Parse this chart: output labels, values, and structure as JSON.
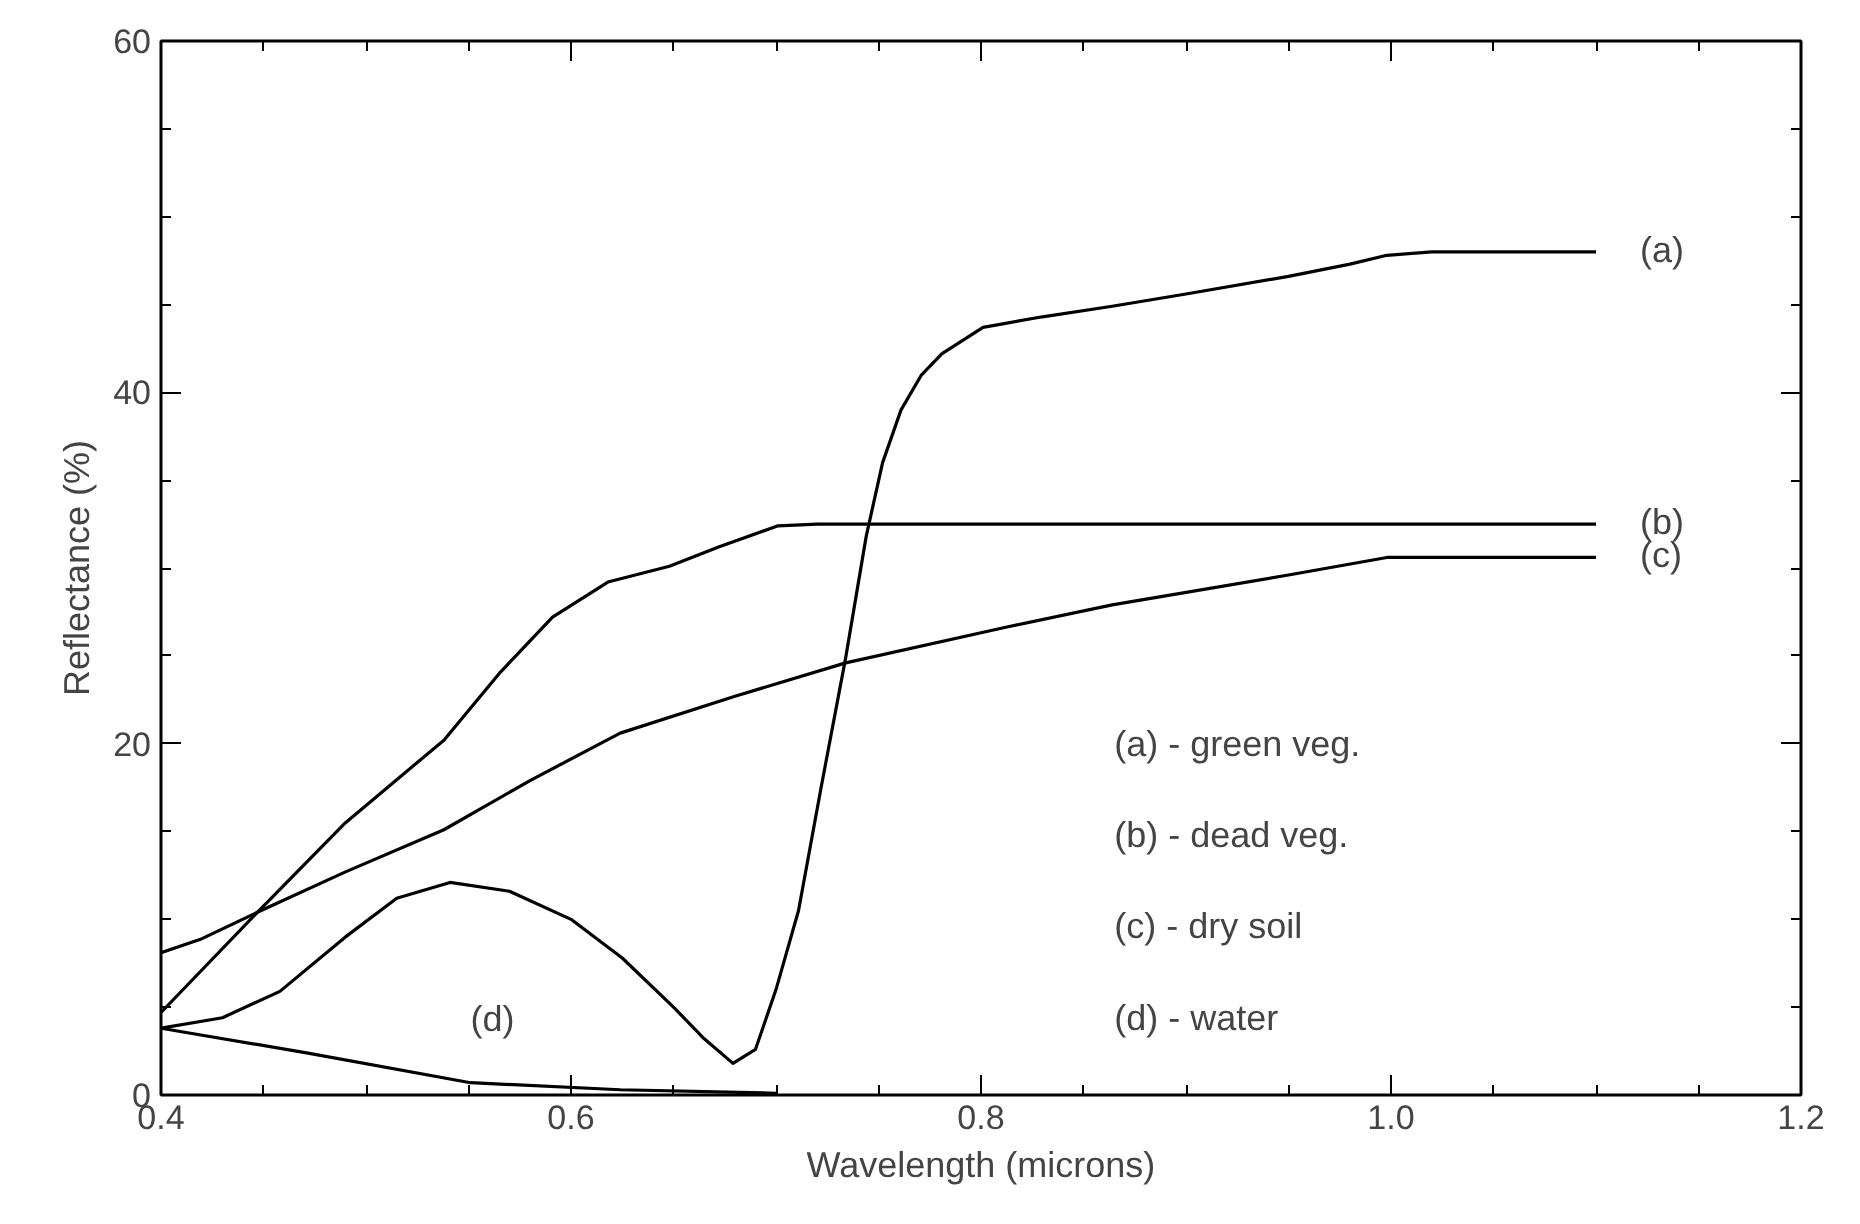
{
  "chart_data": {
    "type": "line",
    "xlabel": "Wavelength (microns)",
    "ylabel": "Reflectance (%)",
    "xlim": [
      0.4,
      1.2
    ],
    "ylim": [
      0,
      60
    ],
    "xticks": [
      0.4,
      0.6,
      0.8,
      {
        "value": 1.0,
        "label": "1.0"
      },
      1.2
    ],
    "yticks": [
      0,
      20,
      40,
      60
    ],
    "grid": false,
    "legend": false,
    "marker": "none",
    "line_style": "solid",
    "series": [
      {
        "name": "(a)",
        "color": "#000000",
        "x": [
          0.4,
          0.43,
          0.458,
          0.49,
          0.515,
          0.541,
          0.57,
          0.6,
          0.625,
          0.65,
          0.665,
          0.679,
          0.69,
          0.7,
          0.711,
          0.722,
          0.734,
          0.744,
          0.752,
          0.761,
          0.771,
          0.781,
          0.801,
          0.83,
          0.864,
          0.9,
          0.95,
          0.98,
          0.998,
          1.02,
          1.1
        ],
        "values": [
          3.8,
          4.4,
          5.9,
          9.0,
          11.2,
          12.1,
          11.6,
          10.0,
          7.8,
          5.0,
          3.2,
          1.8,
          2.6,
          6.0,
          10.5,
          17.5,
          24.9,
          31.8,
          36.0,
          39.0,
          41.0,
          42.2,
          43.7,
          44.3,
          44.9,
          45.6,
          46.6,
          47.3,
          47.8,
          48.0,
          48.0
        ]
      },
      {
        "name": "(b)",
        "color": "#000000",
        "x": [
          0.4,
          0.447,
          0.49,
          0.538,
          0.565,
          0.591,
          0.618,
          0.648,
          0.672,
          0.701,
          0.72,
          0.8,
          1.1
        ],
        "values": [
          4.7,
          10.4,
          15.5,
          20.2,
          24.0,
          27.2,
          29.2,
          30.1,
          31.2,
          32.4,
          32.5,
          32.5,
          32.5
        ]
      },
      {
        "name": "(c)",
        "color": "#000000",
        "x": [
          0.4,
          0.42,
          0.447,
          0.49,
          0.538,
          0.58,
          0.624,
          0.68,
          0.734,
          0.811,
          0.864,
          0.95,
          0.998,
          1.1
        ],
        "values": [
          8.1,
          8.9,
          10.4,
          12.7,
          15.1,
          17.9,
          20.6,
          22.7,
          24.6,
          26.6,
          27.9,
          29.6,
          30.6,
          30.6
        ]
      },
      {
        "name": "(d)",
        "color": "#000000",
        "x": [
          0.4,
          0.471,
          0.551,
          0.624,
          0.7
        ],
        "values": [
          3.8,
          2.4,
          0.7,
          0.3,
          0.1
        ]
      }
    ],
    "annotations": [
      "(a) - green veg.",
      "(b) - dead veg.",
      "(c) - dry soil",
      "(d) - water"
    ]
  }
}
